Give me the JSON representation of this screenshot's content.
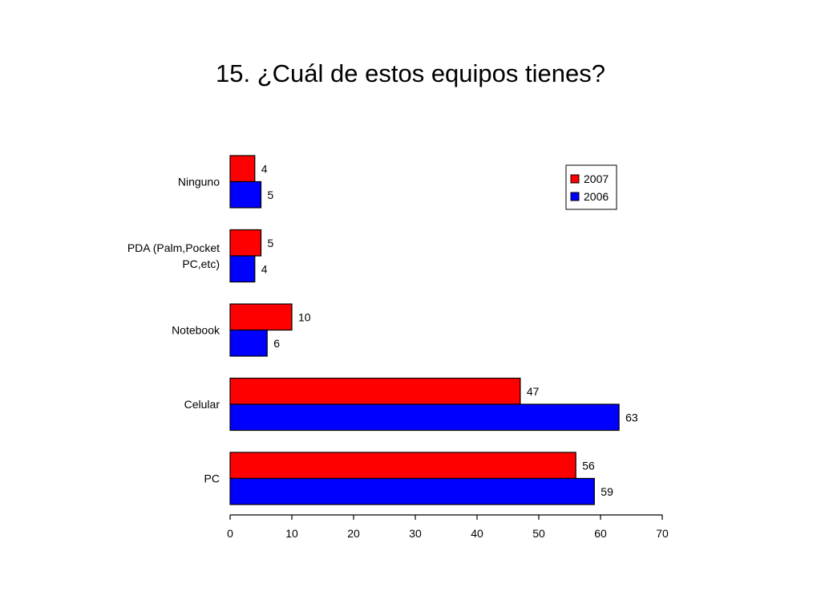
{
  "chart_data": {
    "type": "bar",
    "orientation": "horizontal",
    "title": "15. ¿Cuál de estos equipos tienes?",
    "categories": [
      "Ninguno",
      "PDA (Palm,Pocket PC,etc)",
      "Notebook",
      "Celular",
      "PC"
    ],
    "category_lines": [
      [
        "Ninguno"
      ],
      [
        "PDA (Palm,Pocket",
        "PC,etc)"
      ],
      [
        "Notebook"
      ],
      [
        "Celular"
      ],
      [
        "PC"
      ]
    ],
    "series": [
      {
        "name": "2007",
        "color": "#ff0000",
        "values": [
          4,
          5,
          10,
          47,
          56
        ]
      },
      {
        "name": "2006",
        "color": "#0000ff",
        "values": [
          5,
          4,
          6,
          63,
          59
        ]
      }
    ],
    "xlim": [
      0,
      70
    ],
    "xticks": [
      0,
      10,
      20,
      30,
      40,
      50,
      60,
      70
    ],
    "xlabel": "",
    "ylabel": "",
    "grid": false,
    "legend_position": "top-right",
    "data_labels": true
  }
}
